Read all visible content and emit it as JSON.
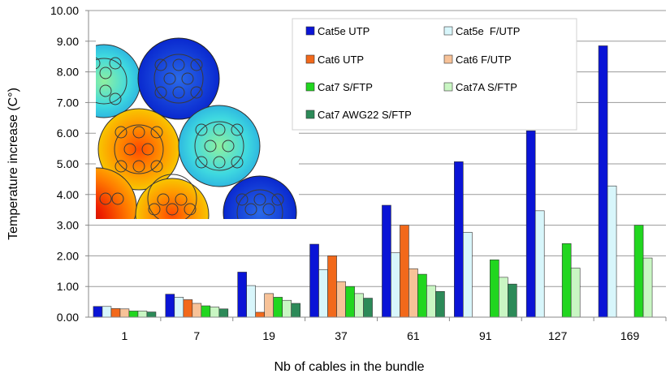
{
  "chart_data": {
    "type": "bar",
    "xlabel": "Nb of cables in the bundle",
    "ylabel": "Temperature increase (C°)",
    "ylim": [
      0,
      10
    ],
    "yticks": [
      "0.00",
      "1.00",
      "2.00",
      "3.00",
      "4.00",
      "5.00",
      "6.00",
      "7.00",
      "8.00",
      "9.00",
      "10.00"
    ],
    "categories": [
      "1",
      "7",
      "19",
      "37",
      "61",
      "91",
      "127",
      "169"
    ],
    "grid": "horizontal",
    "legend_position": "top-right",
    "series": [
      {
        "name": "Cat5e UTP",
        "color": "#0a14d6",
        "values": [
          0.35,
          0.75,
          1.47,
          2.38,
          3.65,
          5.07,
          6.08,
          8.85
        ]
      },
      {
        "name": "Cat5e  F/UTP",
        "color": "#d8f6fb",
        "values": [
          0.35,
          0.65,
          1.03,
          1.55,
          2.1,
          2.77,
          3.47,
          4.28
        ]
      },
      {
        "name": "Cat6 UTP",
        "color": "#f2691b",
        "values": [
          0.28,
          0.57,
          0.16,
          2.0,
          3.0,
          null,
          null,
          null
        ]
      },
      {
        "name": "Cat6 F/UTP",
        "color": "#f7c298",
        "values": [
          0.27,
          0.45,
          0.77,
          1.16,
          1.58,
          null,
          null,
          null
        ]
      },
      {
        "name": "Cat7 S/FTP",
        "color": "#21d61f",
        "values": [
          0.2,
          0.37,
          0.65,
          1.0,
          1.4,
          1.87,
          2.4,
          3.0
        ]
      },
      {
        "name": "Cat7A S/FTP",
        "color": "#c9f6c3",
        "values": [
          0.2,
          0.33,
          0.55,
          0.77,
          1.03,
          1.3,
          1.6,
          1.93
        ]
      },
      {
        "name": "Cat7 AWG22 S/FTP",
        "color": "#2c8a58",
        "values": [
          0.17,
          0.27,
          0.45,
          0.62,
          0.84,
          1.08,
          null,
          null
        ]
      }
    ]
  },
  "inset": {
    "image_name": "cable-bundle-thermal-simulation"
  }
}
